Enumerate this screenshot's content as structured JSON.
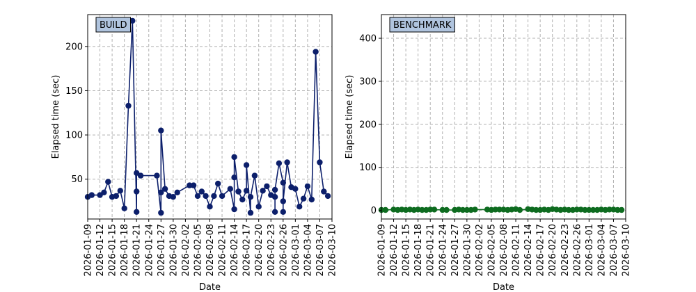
{
  "chart_data": [
    {
      "type": "line",
      "title": "BUILD",
      "xlabel": "Date",
      "ylabel": "Elapsed time (sec)",
      "x_ticks": [
        "2026-01-09",
        "2026-01-12",
        "2026-01-15",
        "2026-01-18",
        "2026-01-21",
        "2026-01-24",
        "2026-01-27",
        "2026-01-30",
        "2026-02-02",
        "2026-02-05",
        "2026-02-08",
        "2026-02-11",
        "2026-02-14",
        "2026-02-17",
        "2026-02-20",
        "2026-02-23",
        "2026-02-26",
        "2026-03-01",
        "2026-03-04",
        "2026-03-07",
        "2026-03-10"
      ],
      "y_ticks": [
        50,
        100,
        150,
        200
      ],
      "xlim": [
        "2026-01-09",
        "2026-03-10"
      ],
      "ylim": [
        5,
        236
      ],
      "grid": true,
      "color": "#0c1f6b",
      "series": [
        {
          "x": [
            "2026-01-09",
            "2026-01-10",
            "2026-01-12",
            "2026-01-13",
            "2026-01-14",
            "2026-01-15",
            "2026-01-16",
            "2026-01-17",
            "2026-01-18",
            "2026-01-19",
            "2026-01-20",
            "2026-01-21",
            "2026-01-21",
            "2026-01-21",
            "2026-01-22",
            "2026-01-26",
            "2026-01-27",
            "2026-01-27",
            "2026-01-27",
            "2026-01-28",
            "2026-01-29",
            "2026-01-30",
            "2026-01-31",
            "2026-02-03",
            "2026-02-04",
            "2026-02-05",
            "2026-02-06",
            "2026-02-07",
            "2026-02-08",
            "2026-02-09",
            "2026-02-10",
            "2026-02-11",
            "2026-02-13",
            "2026-02-14",
            "2026-02-14",
            "2026-02-14",
            "2026-02-15",
            "2026-02-15",
            "2026-02-16",
            "2026-02-17",
            "2026-02-17",
            "2026-02-18",
            "2026-02-18",
            "2026-02-19",
            "2026-02-20",
            "2026-02-21",
            "2026-02-22",
            "2026-02-23",
            "2026-02-24",
            "2026-02-24",
            "2026-02-24",
            "2026-02-25",
            "2026-02-26",
            "2026-02-26",
            "2026-02-26",
            "2026-02-27",
            "2026-02-28",
            "2026-03-01",
            "2026-03-02",
            "2026-03-03",
            "2026-03-04",
            "2026-03-05",
            "2026-03-06",
            "2026-03-07",
            "2026-03-08",
            "2026-03-09"
          ],
          "y": [
            30,
            32,
            32,
            35,
            47,
            30,
            31,
            37,
            17,
            133,
            229,
            13,
            36,
            57,
            54,
            54,
            12,
            35,
            105,
            39,
            31,
            30,
            35,
            43,
            43,
            31,
            36,
            31,
            19,
            31,
            45,
            31,
            39,
            16,
            52,
            75,
            36,
            36,
            27,
            37,
            66,
            12,
            30,
            54,
            19,
            37,
            42,
            32,
            30,
            13,
            38,
            68,
            46,
            13,
            25,
            69,
            41,
            39,
            19,
            28,
            42,
            27,
            194,
            69,
            36,
            31
          ]
        }
      ]
    },
    {
      "type": "line",
      "title": "BENCHMARK",
      "xlabel": "Date",
      "ylabel": "Elapsed time (sec)",
      "x_ticks": [
        "2026-01-09",
        "2026-01-12",
        "2026-01-15",
        "2026-01-18",
        "2026-01-21",
        "2026-01-24",
        "2026-01-27",
        "2026-01-30",
        "2026-02-02",
        "2026-02-05",
        "2026-02-08",
        "2026-02-11",
        "2026-02-14",
        "2026-02-17",
        "2026-02-20",
        "2026-02-23",
        "2026-02-26",
        "2026-03-01",
        "2026-03-04",
        "2026-03-07",
        "2026-03-10"
      ],
      "y_ticks": [
        0,
        100,
        200,
        300,
        400
      ],
      "xlim": [
        "2026-01-09",
        "2026-03-10"
      ],
      "ylim": [
        -20,
        455
      ],
      "grid": true,
      "color": "#0d6b1f",
      "series": [
        {
          "x": [
            "2026-01-09",
            "2026-01-10",
            "2026-01-12",
            "2026-01-13",
            "2026-01-14",
            "2026-01-15",
            "2026-01-16",
            "2026-01-17",
            "2026-01-18",
            "2026-01-19",
            "2026-01-20",
            "2026-01-21",
            "2026-01-22",
            "2026-01-24",
            "2026-01-25",
            "2026-01-27",
            "2026-01-28",
            "2026-01-29",
            "2026-01-30",
            "2026-01-31",
            "2026-02-01",
            "2026-02-04",
            "2026-02-05",
            "2026-02-06",
            "2026-02-07",
            "2026-02-08",
            "2026-02-09",
            "2026-02-10",
            "2026-02-11",
            "2026-02-12",
            "2026-02-14",
            "2026-02-15",
            "2026-02-16",
            "2026-02-17",
            "2026-02-18",
            "2026-02-19",
            "2026-02-20",
            "2026-02-21",
            "2026-02-22",
            "2026-02-23",
            "2026-02-24",
            "2026-02-25",
            "2026-02-26",
            "2026-02-27",
            "2026-02-28",
            "2026-03-01",
            "2026-03-02",
            "2026-03-03",
            "2026-03-04",
            "2026-03-05",
            "2026-03-06",
            "2026-03-07",
            "2026-03-08",
            "2026-03-09"
          ],
          "y": [
            1,
            1,
            2,
            1,
            2,
            1,
            2,
            1,
            2,
            1,
            1,
            2,
            2,
            1,
            1,
            1,
            2,
            1,
            1,
            1,
            2,
            2,
            1,
            2,
            2,
            2,
            1,
            2,
            3,
            1,
            3,
            2,
            1,
            1,
            2,
            1,
            3,
            2,
            1,
            2,
            1,
            1,
            2,
            2,
            1,
            1,
            1,
            1,
            2,
            1,
            2,
            2,
            1,
            1
          ]
        }
      ]
    }
  ]
}
